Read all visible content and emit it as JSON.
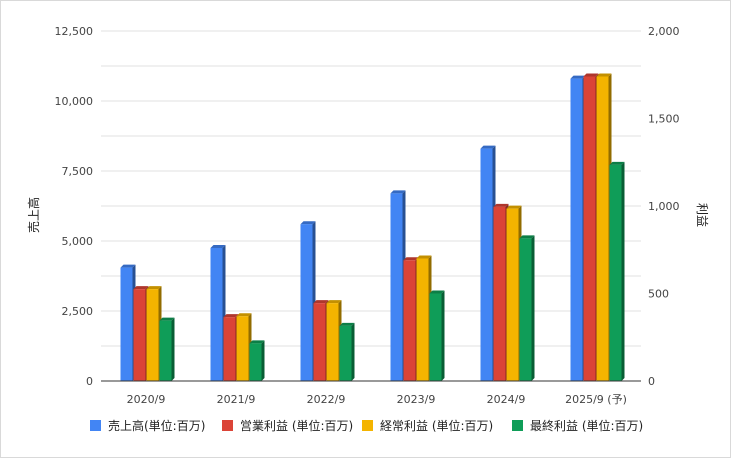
{
  "chart_data": {
    "type": "bar",
    "categories": [
      "2020/9",
      "2021/9",
      "2022/9",
      "2023/9",
      "2024/9",
      "2025/9 (予)"
    ],
    "left_axis": {
      "label": "売上高",
      "ylim": [
        0,
        12500
      ],
      "ticks": [
        "0",
        "2,500",
        "5,000",
        "7,500",
        "10,000",
        "12,500"
      ],
      "tick_values": [
        0,
        2500,
        5000,
        7500,
        10000,
        12500
      ]
    },
    "right_axis": {
      "label": "利益",
      "ylim": [
        0,
        2000
      ],
      "ticks": [
        "0",
        "500",
        "1,000",
        "1,500",
        "2,000"
      ],
      "tick_values": [
        0,
        500,
        1000,
        1500,
        2000
      ]
    },
    "series": [
      {
        "name": "売上高(単位:百万)",
        "axis": "left",
        "color": "#4285f4",
        "values": [
          4050,
          4750,
          5600,
          6700,
          8300,
          10800
        ]
      },
      {
        "name": "営業利益 (単位:百万)",
        "axis": "right",
        "color": "#db4437",
        "values": [
          525,
          365,
          445,
          690,
          995,
          1740
        ]
      },
      {
        "name": "経常利益 (単位:百万)",
        "axis": "right",
        "color": "#f4b400",
        "values": [
          525,
          370,
          445,
          700,
          985,
          1740
        ]
      },
      {
        "name": "最終利益 (単位:百万)",
        "axis": "right",
        "color": "#0f9d58",
        "values": [
          345,
          215,
          315,
          500,
          815,
          1235
        ]
      }
    ],
    "grid": true,
    "legend": "bottom"
  }
}
